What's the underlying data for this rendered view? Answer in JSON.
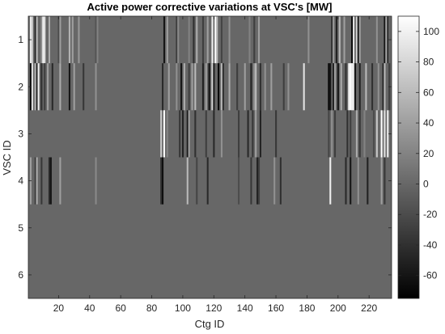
{
  "chart_data": {
    "type": "heatmap",
    "title": "Active power corrective variations at VSC's [MW]",
    "xlabel": "Ctg ID",
    "ylabel": "VSC ID",
    "xlim": [
      1,
      234
    ],
    "y_categories": [
      1,
      2,
      3,
      4,
      5,
      6
    ],
    "x_ticks": [
      20,
      40,
      60,
      80,
      100,
      120,
      140,
      160,
      180,
      200,
      220
    ],
    "colorbar": {
      "colormap": "gray",
      "clim": [
        -75,
        110
      ],
      "ticks": [
        100,
        80,
        60,
        40,
        20,
        0,
        -20,
        -40,
        -60
      ]
    },
    "background_value": 0,
    "rows": [
      {
        "vsc": 1,
        "cells": [
          [
            2,
            95
          ],
          [
            3,
            70
          ],
          [
            5,
            -45
          ],
          [
            6,
            60
          ],
          [
            9,
            30
          ],
          [
            10,
            100
          ],
          [
            11,
            90
          ],
          [
            14,
            50
          ],
          [
            20,
            -20
          ],
          [
            21,
            40
          ],
          [
            27,
            55
          ],
          [
            29,
            40
          ],
          [
            33,
            35
          ],
          [
            44,
            -15
          ],
          [
            45,
            20
          ],
          [
            88,
            -60
          ],
          [
            90,
            40
          ],
          [
            96,
            -30
          ],
          [
            97,
            25
          ],
          [
            104,
            20
          ],
          [
            107,
            -40
          ],
          [
            109,
            50
          ],
          [
            113,
            -30
          ],
          [
            116,
            40
          ],
          [
            119,
            100
          ],
          [
            121,
            110
          ],
          [
            122,
            60
          ],
          [
            125,
            -25
          ],
          [
            130,
            30
          ],
          [
            143,
            20
          ],
          [
            146,
            -30
          ],
          [
            149,
            40
          ],
          [
            181,
            30
          ],
          [
            196,
            -40
          ],
          [
            197,
            35
          ],
          [
            199,
            -50
          ],
          [
            201,
            60
          ],
          [
            204,
            40
          ],
          [
            209,
            -70
          ],
          [
            210,
            90
          ],
          [
            212,
            80
          ],
          [
            213,
            -60
          ],
          [
            214,
            40
          ],
          [
            225,
            30
          ],
          [
            230,
            -60
          ],
          [
            231,
            50
          ],
          [
            232,
            -40
          ]
        ]
      },
      {
        "vsc": 2,
        "cells": [
          [
            2,
            -70
          ],
          [
            3,
            90
          ],
          [
            5,
            60
          ],
          [
            6,
            -50
          ],
          [
            7,
            100
          ],
          [
            9,
            -40
          ],
          [
            11,
            -30
          ],
          [
            13,
            40
          ],
          [
            16,
            -45
          ],
          [
            21,
            50
          ],
          [
            27,
            -60
          ],
          [
            30,
            40
          ],
          [
            36,
            -35
          ],
          [
            44,
            30
          ],
          [
            87,
            -45
          ],
          [
            91,
            40
          ],
          [
            96,
            30
          ],
          [
            99,
            -60
          ],
          [
            101,
            50
          ],
          [
            104,
            -30
          ],
          [
            106,
            40
          ],
          [
            108,
            60
          ],
          [
            113,
            -50
          ],
          [
            115,
            40
          ],
          [
            117,
            -65
          ],
          [
            119,
            80
          ],
          [
            120,
            -55
          ],
          [
            123,
            -70
          ],
          [
            125,
            60
          ],
          [
            126,
            -40
          ],
          [
            130,
            50
          ],
          [
            135,
            -30
          ],
          [
            140,
            40
          ],
          [
            144,
            -50
          ],
          [
            146,
            30
          ],
          [
            147,
            60
          ],
          [
            150,
            -40
          ],
          [
            153,
            30
          ],
          [
            157,
            40
          ],
          [
            165,
            -30
          ],
          [
            168,
            30
          ],
          [
            178,
            90
          ],
          [
            194,
            -70
          ],
          [
            195,
            -60
          ],
          [
            197,
            -50
          ],
          [
            198,
            40
          ],
          [
            200,
            -60
          ],
          [
            202,
            50
          ],
          [
            205,
            -40
          ],
          [
            207,
            100
          ],
          [
            208,
            110
          ],
          [
            209,
            100
          ],
          [
            210,
            90
          ],
          [
            211,
            -60
          ],
          [
            214,
            -50
          ],
          [
            218,
            60
          ],
          [
            222,
            -40
          ],
          [
            226,
            30
          ],
          [
            229,
            -45
          ],
          [
            230,
            60
          ],
          [
            233,
            -30
          ]
        ]
      },
      {
        "vsc": 3,
        "cells": [
          [
            86,
            70
          ],
          [
            88,
            110
          ],
          [
            90,
            20
          ],
          [
            98,
            -35
          ],
          [
            100,
            -50
          ],
          [
            103,
            -55
          ],
          [
            104,
            40
          ],
          [
            108,
            -40
          ],
          [
            115,
            -30
          ],
          [
            120,
            -45
          ],
          [
            125,
            30
          ],
          [
            136,
            -30
          ],
          [
            142,
            -45
          ],
          [
            145,
            -35
          ],
          [
            147,
            40
          ],
          [
            150,
            -50
          ],
          [
            160,
            -35
          ],
          [
            194,
            -25
          ],
          [
            196,
            30
          ],
          [
            198,
            -30
          ],
          [
            206,
            -40
          ],
          [
            208,
            -30
          ],
          [
            212,
            50
          ],
          [
            214,
            -35
          ],
          [
            217,
            20
          ],
          [
            223,
            -20
          ],
          [
            225,
            70
          ],
          [
            228,
            110
          ],
          [
            230,
            90
          ],
          [
            232,
            100
          ]
        ]
      },
      {
        "vsc": 4,
        "cells": [
          [
            2,
            40
          ],
          [
            5,
            -30
          ],
          [
            6,
            50
          ],
          [
            9,
            -35
          ],
          [
            14,
            -45
          ],
          [
            15,
            -60
          ],
          [
            21,
            40
          ],
          [
            44,
            25
          ],
          [
            86,
            -40
          ],
          [
            87,
            -65
          ],
          [
            103,
            60
          ],
          [
            109,
            -25
          ],
          [
            116,
            -45
          ],
          [
            136,
            -20
          ],
          [
            144,
            -35
          ],
          [
            148,
            -50
          ],
          [
            149,
            -30
          ],
          [
            159,
            30
          ],
          [
            163,
            -40
          ],
          [
            195,
            100
          ],
          [
            205,
            -45
          ],
          [
            208,
            -60
          ],
          [
            213,
            30
          ],
          [
            219,
            -50
          ],
          [
            228,
            40
          ],
          [
            230,
            -35
          ]
        ]
      },
      {
        "vsc": 5,
        "cells": []
      },
      {
        "vsc": 6,
        "cells": []
      }
    ]
  }
}
